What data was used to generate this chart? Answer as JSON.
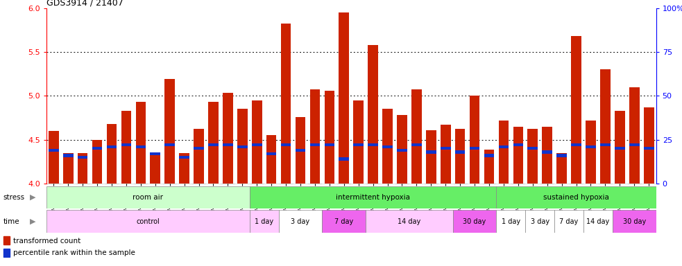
{
  "title": "GDS3914 / 21407",
  "samples": [
    "GSM215660",
    "GSM215661",
    "GSM215662",
    "GSM215663",
    "GSM215664",
    "GSM215665",
    "GSM215666",
    "GSM215667",
    "GSM215668",
    "GSM215669",
    "GSM215670",
    "GSM215671",
    "GSM215672",
    "GSM215673",
    "GSM215674",
    "GSM215675",
    "GSM215676",
    "GSM215677",
    "GSM215678",
    "GSM215679",
    "GSM215680",
    "GSM215681",
    "GSM215682",
    "GSM215683",
    "GSM215684",
    "GSM215685",
    "GSM215686",
    "GSM215687",
    "GSM215688",
    "GSM215689",
    "GSM215690",
    "GSM215691",
    "GSM215692",
    "GSM215693",
    "GSM215694",
    "GSM215695",
    "GSM215696",
    "GSM215697",
    "GSM215698",
    "GSM215699",
    "GSM215700",
    "GSM215701"
  ],
  "transformed_count": [
    4.6,
    4.35,
    4.35,
    4.5,
    4.68,
    4.83,
    4.93,
    4.35,
    5.19,
    4.35,
    4.62,
    4.93,
    5.03,
    4.85,
    4.95,
    4.55,
    5.82,
    4.76,
    5.07,
    5.06,
    5.95,
    4.95,
    5.58,
    4.85,
    4.78,
    5.07,
    4.61,
    4.67,
    4.62,
    5.0,
    4.39,
    4.72,
    4.65,
    4.62,
    4.65,
    4.35,
    5.68,
    4.72,
    5.3,
    4.83,
    5.1,
    4.87
  ],
  "percentile_rank": [
    19,
    16,
    15,
    20,
    21,
    22,
    21,
    17,
    22,
    15,
    20,
    22,
    22,
    21,
    22,
    17,
    22,
    19,
    22,
    22,
    14,
    22,
    22,
    21,
    19,
    22,
    18,
    20,
    18,
    20,
    16,
    21,
    22,
    20,
    18,
    16,
    22,
    21,
    22,
    20,
    22,
    20
  ],
  "ylim_left": [
    4.0,
    6.0
  ],
  "ylim_right": [
    0,
    100
  ],
  "yticks_left": [
    4.0,
    4.5,
    5.0,
    5.5,
    6.0
  ],
  "yticks_right": [
    0,
    25,
    50,
    75,
    100
  ],
  "bar_color": "#cc2200",
  "percentile_color": "#1133cc",
  "stress_groups": [
    {
      "label": "room air",
      "start": 0,
      "end": 14,
      "color": "#ccffcc"
    },
    {
      "label": "intermittent hypoxia",
      "start": 14,
      "end": 31,
      "color": "#66ee66"
    },
    {
      "label": "sustained hypoxia",
      "start": 31,
      "end": 42,
      "color": "#66ee66"
    }
  ],
  "time_groups": [
    {
      "label": "control",
      "start": 0,
      "end": 14,
      "color": "#ffccff"
    },
    {
      "label": "1 day",
      "start": 14,
      "end": 16,
      "color": "#ffccff"
    },
    {
      "label": "3 day",
      "start": 16,
      "end": 19,
      "color": "#ffffff"
    },
    {
      "label": "7 day",
      "start": 19,
      "end": 22,
      "color": "#ee66ee"
    },
    {
      "label": "14 day",
      "start": 22,
      "end": 28,
      "color": "#ffccff"
    },
    {
      "label": "30 day",
      "start": 28,
      "end": 31,
      "color": "#ee66ee"
    },
    {
      "label": "1 day",
      "start": 31,
      "end": 33,
      "color": "#ffffff"
    },
    {
      "label": "3 day",
      "start": 33,
      "end": 35,
      "color": "#ffffff"
    },
    {
      "label": "7 day",
      "start": 35,
      "end": 37,
      "color": "#ffffff"
    },
    {
      "label": "14 day",
      "start": 37,
      "end": 39,
      "color": "#ffffff"
    },
    {
      "label": "30 day",
      "start": 39,
      "end": 42,
      "color": "#ee66ee"
    }
  ],
  "bg_color": "#f0f0f0"
}
